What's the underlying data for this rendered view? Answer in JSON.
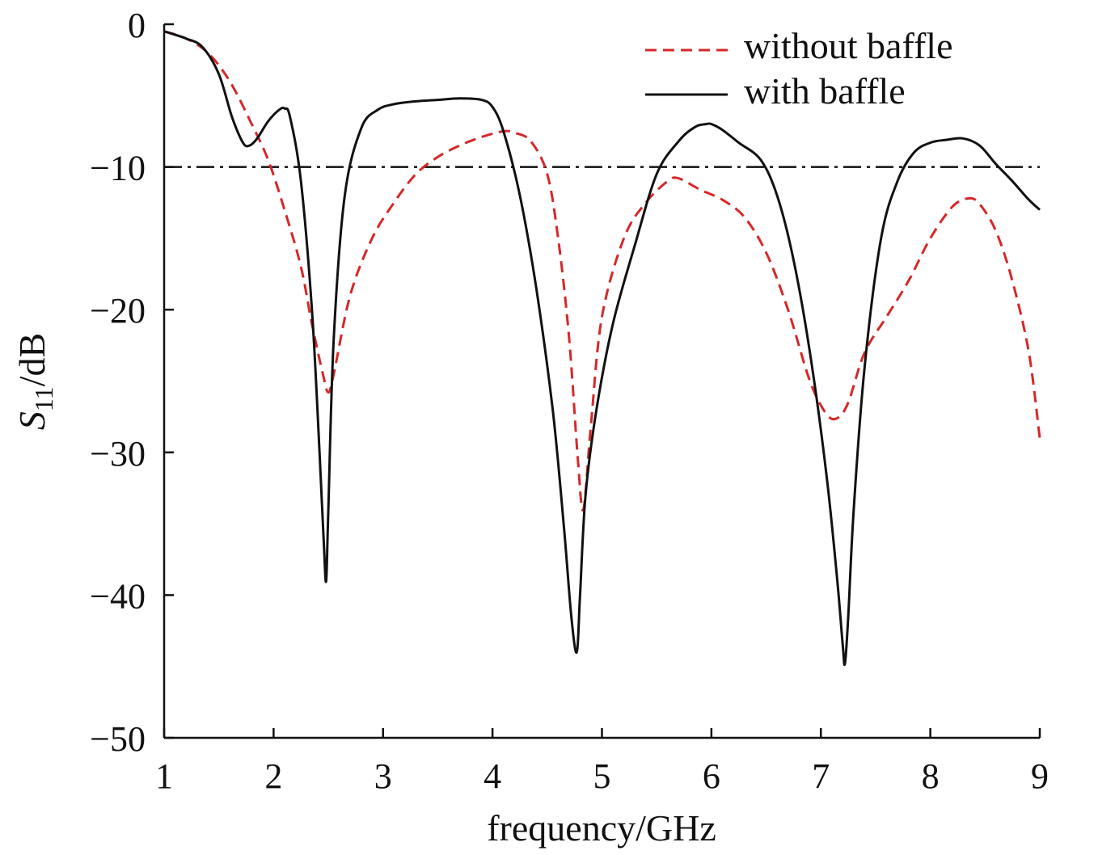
{
  "chart_data": {
    "type": "line",
    "xlabel": "frequency/GHz",
    "ylabel_main": "S",
    "ylabel_sub": "11",
    "ylabel_unit": "/dB",
    "xlim": [
      1,
      9
    ],
    "ylim": [
      -50,
      0
    ],
    "x_ticks": [
      "1",
      "2",
      "3",
      "4",
      "5",
      "6",
      "7",
      "8",
      "9"
    ],
    "y_ticks": [
      "0",
      "−10",
      "−20",
      "−30",
      "−40",
      "−50"
    ],
    "grid": false,
    "legend_placement": "top-right",
    "reference_line": {
      "y": -10,
      "style": "dash-dot",
      "color": "#111111"
    },
    "series": [
      {
        "name": "without baffle",
        "style": "dashed",
        "color": "#d62728",
        "x": [
          1.0,
          1.2,
          1.4,
          1.6,
          1.8,
          1.95,
          2.1,
          2.25,
          2.35,
          2.45,
          2.5,
          2.55,
          2.7,
          2.9,
          3.1,
          3.3,
          3.5,
          3.7,
          3.9,
          4.1,
          4.2,
          4.35,
          4.5,
          4.6,
          4.7,
          4.78,
          4.83,
          4.9,
          5.0,
          5.2,
          5.4,
          5.6,
          5.7,
          5.9,
          6.1,
          6.3,
          6.5,
          6.7,
          6.9,
          7.05,
          7.15,
          7.25,
          7.4,
          7.6,
          7.8,
          8.0,
          8.2,
          8.35,
          8.45,
          8.6,
          8.75,
          8.9,
          9.0
        ],
        "y": [
          -0.5,
          -1.0,
          -2.0,
          -4.0,
          -7.0,
          -9.5,
          -13.0,
          -17.0,
          -21.0,
          -24.5,
          -25.8,
          -24.5,
          -19.0,
          -15.0,
          -12.5,
          -10.5,
          -9.3,
          -8.5,
          -7.9,
          -7.5,
          -7.6,
          -8.2,
          -10.5,
          -15.0,
          -22.0,
          -30.5,
          -34.0,
          -28.0,
          -20.5,
          -15.0,
          -12.5,
          -11.0,
          -10.8,
          -11.6,
          -12.3,
          -13.5,
          -16.0,
          -20.0,
          -25.0,
          -27.3,
          -27.6,
          -26.5,
          -23.0,
          -20.5,
          -18.0,
          -15.0,
          -12.8,
          -12.2,
          -12.6,
          -14.5,
          -18.0,
          -23.0,
          -29.0
        ]
      },
      {
        "name": "with baffle",
        "style": "solid",
        "color": "#111111",
        "x": [
          1.0,
          1.2,
          1.35,
          1.5,
          1.62,
          1.72,
          1.78,
          1.85,
          1.95,
          2.05,
          2.1,
          2.15,
          2.25,
          2.35,
          2.42,
          2.46,
          2.48,
          2.5,
          2.55,
          2.65,
          2.8,
          2.95,
          3.1,
          3.3,
          3.5,
          3.7,
          3.9,
          4.0,
          4.1,
          4.25,
          4.4,
          4.55,
          4.65,
          4.72,
          4.77,
          4.8,
          4.85,
          4.95,
          5.1,
          5.3,
          5.5,
          5.7,
          5.85,
          5.95,
          6.0,
          6.1,
          6.25,
          6.45,
          6.6,
          6.75,
          6.9,
          7.05,
          7.15,
          7.2,
          7.22,
          7.25,
          7.3,
          7.4,
          7.55,
          7.7,
          7.85,
          8.0,
          8.15,
          8.3,
          8.45,
          8.6,
          8.75,
          8.9,
          9.0
        ],
        "y": [
          -0.5,
          -1.0,
          -1.6,
          -3.5,
          -6.5,
          -8.3,
          -8.5,
          -8.0,
          -6.8,
          -6.0,
          -5.9,
          -6.5,
          -11.0,
          -20.0,
          -30.0,
          -36.5,
          -39.0,
          -34.0,
          -22.0,
          -12.0,
          -7.3,
          -6.0,
          -5.6,
          -5.4,
          -5.3,
          -5.2,
          -5.3,
          -5.8,
          -7.5,
          -12.0,
          -18.5,
          -27.0,
          -35.0,
          -41.5,
          -44.0,
          -40.0,
          -33.0,
          -27.0,
          -21.0,
          -15.5,
          -10.5,
          -8.2,
          -7.2,
          -7.0,
          -7.0,
          -7.4,
          -8.3,
          -9.5,
          -12.0,
          -16.5,
          -23.0,
          -31.5,
          -39.0,
          -43.5,
          -44.8,
          -41.5,
          -34.0,
          -24.0,
          -15.0,
          -11.0,
          -9.0,
          -8.3,
          -8.1,
          -8.0,
          -8.5,
          -9.8,
          -11.0,
          -12.3,
          -13.0
        ]
      }
    ]
  }
}
